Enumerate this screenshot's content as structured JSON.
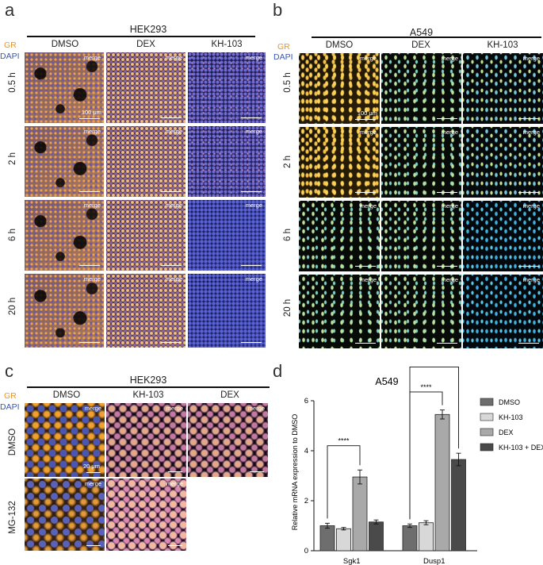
{
  "panels": {
    "a": {
      "letter": "a",
      "title": "HEK293",
      "gr": "GR",
      "dapi": "DAPI",
      "cols": [
        "DMSO",
        "DEX",
        "KH-103"
      ],
      "rows": [
        "0.5 h",
        "2 h",
        "6 h",
        "20 h"
      ],
      "merge": "merge",
      "scale": "100 μm"
    },
    "b": {
      "letter": "b",
      "title": "A549",
      "gr": "GR",
      "dapi": "DAPI",
      "cols": [
        "DMSO",
        "DEX",
        "KH-103"
      ],
      "rows": [
        "0.5 h",
        "2 h",
        "6 h",
        "20 h"
      ],
      "merge": "merge",
      "scale": "100 μm"
    },
    "c": {
      "letter": "c",
      "title": "HEK293",
      "gr": "GR",
      "dapi": "DAPI",
      "cols": [
        "DMSO",
        "KH-103",
        "DEX"
      ],
      "rows": [
        "DMSO",
        "MG-132"
      ],
      "merge": "merge",
      "scale": "20 μm"
    },
    "d": {
      "letter": "d"
    }
  },
  "chart_data": {
    "type": "bar",
    "title": "A549",
    "ylabel": "Relative mRNA expression to DMSO",
    "xlabel": "",
    "ylim": [
      0,
      6
    ],
    "yticks": [
      0,
      2,
      4,
      6
    ],
    "categories": [
      "Sgk1",
      "Dusp1"
    ],
    "series": [
      {
        "name": "DMSO",
        "color": "#6e6e6e",
        "values": [
          1.0,
          1.0
        ],
        "errors": [
          0.1,
          0.07
        ]
      },
      {
        "name": "KH-103",
        "color": "#d8d8d8",
        "values": [
          0.88,
          1.12
        ],
        "errors": [
          0.05,
          0.08
        ]
      },
      {
        "name": "DEX",
        "color": "#a9a9a9",
        "values": [
          2.95,
          5.45
        ],
        "errors": [
          0.28,
          0.18
        ]
      },
      {
        "name": "KH-103 + DEX",
        "color": "#4a4a4a",
        "values": [
          1.15,
          3.65
        ],
        "errors": [
          0.08,
          0.25
        ]
      }
    ],
    "significance": [
      {
        "category": "Sgk1",
        "from": "DMSO",
        "to": "DEX",
        "label": "****"
      },
      {
        "category": "Dusp1",
        "from": "DMSO",
        "to": "DEX",
        "label": "****"
      },
      {
        "category": "Dusp1",
        "from": "DMSO",
        "to": "KH-103 + DEX",
        "label": "****"
      }
    ],
    "legend_position": "right"
  }
}
